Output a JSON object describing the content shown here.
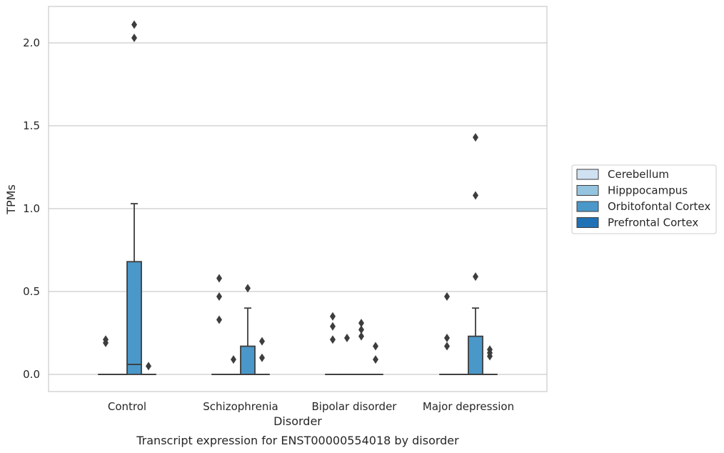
{
  "chart_data": {
    "type": "box",
    "caption": "Transcript expression for ENST00000554018 by disorder",
    "xlabel": "Disorder",
    "ylabel": "TPMs",
    "ylim": [
      -0.1,
      2.22
    ],
    "yticks": [
      0.0,
      0.5,
      1.0,
      1.5,
      2.0
    ],
    "ytick_labels": [
      "0.0",
      "0.5",
      "1.0",
      "1.5",
      "2.0"
    ],
    "grid": "horizontal",
    "legend_position": "right",
    "categories": [
      "Control",
      "Schizophrenia",
      "Bipolar disorder",
      "Major depression"
    ],
    "series": [
      {
        "name": "Cerebellum",
        "color": "#d0e1f2",
        "boxes": [
          {
            "category": "Control",
            "q1": 0.0,
            "median": 0.0,
            "q3": 0.0,
            "whisker_low": 0.0,
            "whisker_high": 0.0,
            "outliers": [
              0.19,
              0.21
            ]
          },
          {
            "category": "Schizophrenia",
            "q1": 0.0,
            "median": 0.0,
            "q3": 0.0,
            "whisker_low": 0.0,
            "whisker_high": 0.0,
            "outliers": [
              0.33,
              0.47,
              0.58
            ]
          },
          {
            "category": "Bipolar disorder",
            "q1": 0.0,
            "median": 0.0,
            "q3": 0.0,
            "whisker_low": 0.0,
            "whisker_high": 0.0,
            "outliers": [
              0.21,
              0.29,
              0.35
            ]
          },
          {
            "category": "Major depression",
            "q1": 0.0,
            "median": 0.0,
            "q3": 0.0,
            "whisker_low": 0.0,
            "whisker_high": 0.0,
            "outliers": [
              0.17,
              0.22,
              0.47
            ]
          }
        ]
      },
      {
        "name": "Hipppocampus",
        "color": "#94c4df",
        "boxes": [
          {
            "category": "Control",
            "q1": 0.0,
            "median": 0.0,
            "q3": 0.0,
            "whisker_low": 0.0,
            "whisker_high": 0.0,
            "outliers": []
          },
          {
            "category": "Schizophrenia",
            "q1": 0.0,
            "median": 0.0,
            "q3": 0.0,
            "whisker_low": 0.0,
            "whisker_high": 0.0,
            "outliers": [
              0.09
            ]
          },
          {
            "category": "Bipolar disorder",
            "q1": 0.0,
            "median": 0.0,
            "q3": 0.0,
            "whisker_low": 0.0,
            "whisker_high": 0.0,
            "outliers": [
              0.22
            ]
          },
          {
            "category": "Major depression",
            "q1": 0.0,
            "median": 0.0,
            "q3": 0.0,
            "whisker_low": 0.0,
            "whisker_high": 0.0,
            "outliers": []
          }
        ]
      },
      {
        "name": "Orbitofontal Cortex",
        "color": "#4a98c9",
        "boxes": [
          {
            "category": "Control",
            "q1": 0.0,
            "median": 0.06,
            "q3": 0.68,
            "whisker_low": 0.0,
            "whisker_high": 1.03,
            "outliers": [
              2.03,
              2.11
            ]
          },
          {
            "category": "Schizophrenia",
            "q1": 0.0,
            "median": 0.0,
            "q3": 0.17,
            "whisker_low": 0.0,
            "whisker_high": 0.4,
            "outliers": [
              0.52
            ]
          },
          {
            "category": "Bipolar disorder",
            "q1": 0.0,
            "median": 0.0,
            "q3": 0.0,
            "whisker_low": 0.0,
            "whisker_high": 0.0,
            "outliers": [
              0.23,
              0.27,
              0.31
            ]
          },
          {
            "category": "Major depression",
            "q1": 0.0,
            "median": 0.0,
            "q3": 0.23,
            "whisker_low": 0.0,
            "whisker_high": 0.4,
            "outliers": [
              0.59,
              1.08,
              1.43
            ]
          }
        ]
      },
      {
        "name": "Prefrontal Cortex",
        "color": "#2171b5",
        "boxes": [
          {
            "category": "Control",
            "q1": 0.0,
            "median": 0.0,
            "q3": 0.0,
            "whisker_low": 0.0,
            "whisker_high": 0.0,
            "outliers": [
              0.05
            ]
          },
          {
            "category": "Schizophrenia",
            "q1": 0.0,
            "median": 0.0,
            "q3": 0.0,
            "whisker_low": 0.0,
            "whisker_high": 0.0,
            "outliers": [
              0.1,
              0.2
            ]
          },
          {
            "category": "Bipolar disorder",
            "q1": 0.0,
            "median": 0.0,
            "q3": 0.0,
            "whisker_low": 0.0,
            "whisker_high": 0.0,
            "outliers": [
              0.09,
              0.17
            ]
          },
          {
            "category": "Major depression",
            "q1": 0.0,
            "median": 0.0,
            "q3": 0.0,
            "whisker_low": 0.0,
            "whisker_high": 0.0,
            "outliers": [
              0.11,
              0.13,
              0.15
            ]
          }
        ]
      }
    ]
  }
}
